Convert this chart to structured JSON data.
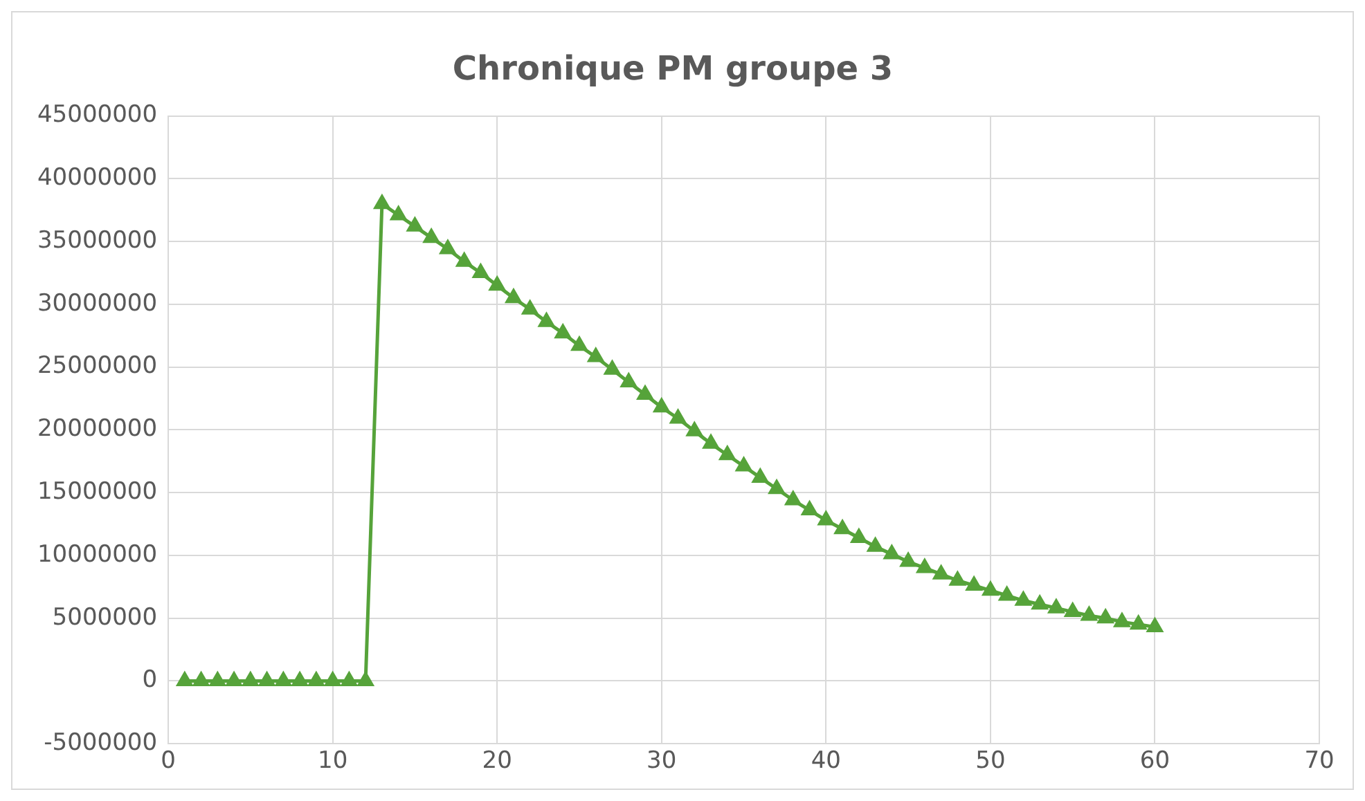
{
  "chart_data": {
    "type": "line",
    "title": "Chronique PM groupe 3",
    "x": [
      1,
      2,
      3,
      4,
      5,
      6,
      7,
      8,
      9,
      10,
      11,
      12,
      13,
      14,
      15,
      16,
      17,
      18,
      19,
      20,
      21,
      22,
      23,
      24,
      25,
      26,
      27,
      28,
      29,
      30,
      31,
      32,
      33,
      34,
      35,
      36,
      37,
      38,
      39,
      40,
      41,
      42,
      43,
      44,
      45,
      46,
      47,
      48,
      49,
      50,
      51,
      52,
      53,
      54,
      55,
      56,
      57,
      58,
      59,
      60
    ],
    "series": [
      {
        "color": "#56a33a",
        "values": [
          0,
          0,
          0,
          0,
          0,
          0,
          0,
          0,
          0,
          0,
          0,
          0,
          38000000,
          37100000,
          36200000,
          35300000,
          34400000,
          33400000,
          32500000,
          31500000,
          30500000,
          29600000,
          28600000,
          27700000,
          26700000,
          25800000,
          24800000,
          23800000,
          22800000,
          21800000,
          20900000,
          19900000,
          18900000,
          18000000,
          17100000,
          16200000,
          15300000,
          14400000,
          13600000,
          12800000,
          12100000,
          11400000,
          10700000,
          10100000,
          9500000,
          9000000,
          8500000,
          8000000,
          7600000,
          7200000,
          6800000,
          6400000,
          6100000,
          5800000,
          5500000,
          5200000,
          5000000,
          4700000,
          4500000,
          4300000
        ]
      }
    ],
    "xlim": [
      0,
      70
    ],
    "xticks": [
      0,
      10,
      20,
      30,
      40,
      50,
      60,
      70
    ],
    "ylim": [
      -5000000,
      45000000
    ],
    "yticks": [
      -5000000,
      0,
      5000000,
      10000000,
      15000000,
      20000000,
      25000000,
      30000000,
      35000000,
      40000000,
      45000000
    ],
    "grid": true,
    "marker": "triangle",
    "line_style": "solid",
    "legend": false
  }
}
